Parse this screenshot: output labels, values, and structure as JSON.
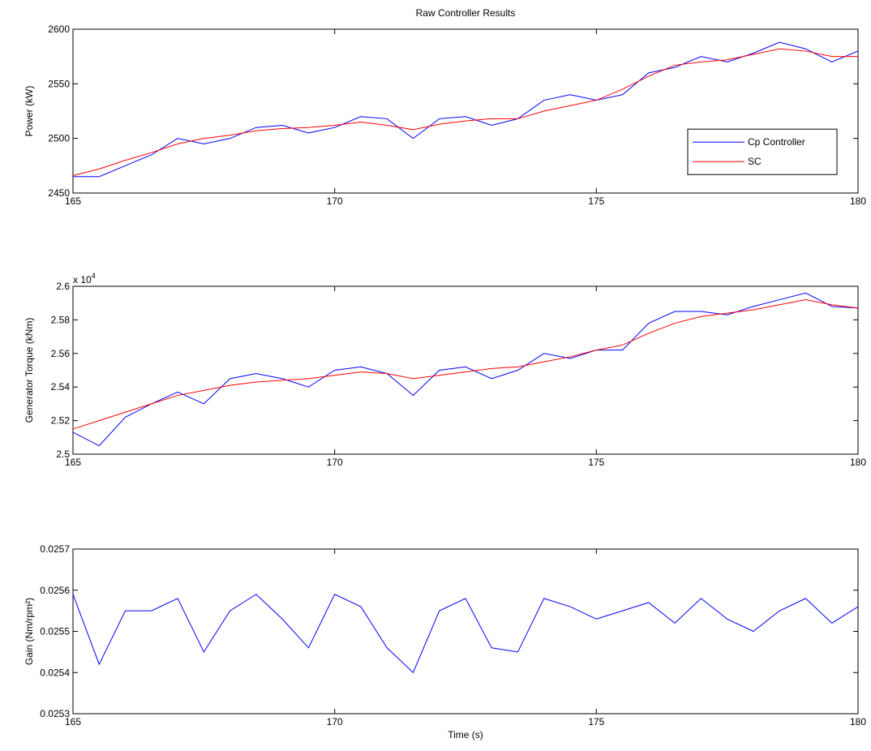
{
  "chart_data": [
    {
      "type": "line",
      "title": "Raw Controller Results",
      "ylabel": "Power (kW)",
      "x": [
        165,
        165.5,
        166,
        166.5,
        167,
        167.5,
        168,
        168.5,
        169,
        169.5,
        170,
        170.5,
        171,
        171.5,
        172,
        172.5,
        173,
        173.5,
        174,
        174.5,
        175,
        175.5,
        176,
        176.5,
        177,
        177.5,
        178,
        178.5,
        179,
        179.5,
        180
      ],
      "series": [
        {
          "name": "Cp Controller",
          "color": "#0000ff",
          "values": [
            2465,
            2465,
            2475,
            2485,
            2500,
            2495,
            2500,
            2510,
            2512,
            2505,
            2510,
            2520,
            2518,
            2500,
            2518,
            2520,
            2512,
            2518,
            2535,
            2540,
            2535,
            2540,
            2560,
            2565,
            2575,
            2570,
            2578,
            2588,
            2582,
            2570,
            2580
          ]
        },
        {
          "name": "SC",
          "color": "#ff0000",
          "values": [
            2466,
            2472,
            2480,
            2487,
            2495,
            2500,
            2503,
            2507,
            2509,
            2510,
            2512,
            2515,
            2512,
            2508,
            2513,
            2516,
            2518,
            2518,
            2525,
            2530,
            2535,
            2545,
            2557,
            2567,
            2570,
            2572,
            2577,
            2582,
            2580,
            2575,
            2575
          ]
        }
      ],
      "xlim": [
        165,
        180
      ],
      "xticks": [
        165,
        170,
        175,
        180
      ],
      "ylim": [
        2450,
        2600
      ],
      "yticks": [
        2450,
        2500,
        2550,
        2600
      ],
      "legend": "right"
    },
    {
      "type": "line",
      "ylabel": "Generator Torque (kNm)",
      "multiplier": {
        "base": "x 10",
        "exponent": "4"
      },
      "x": [
        165,
        165.5,
        166,
        166.5,
        167,
        167.5,
        168,
        168.5,
        169,
        169.5,
        170,
        170.5,
        171,
        171.5,
        172,
        172.5,
        173,
        173.5,
        174,
        174.5,
        175,
        175.5,
        176,
        176.5,
        177,
        177.5,
        178,
        178.5,
        179,
        179.5,
        180
      ],
      "series": [
        {
          "name": "Cp Controller",
          "color": "#0000ff",
          "values": [
            2.513,
            2.505,
            2.522,
            2.53,
            2.537,
            2.53,
            2.545,
            2.548,
            2.545,
            2.54,
            2.55,
            2.552,
            2.548,
            2.535,
            2.55,
            2.552,
            2.545,
            2.55,
            2.56,
            2.557,
            2.562,
            2.562,
            2.578,
            2.585,
            2.585,
            2.583,
            2.588,
            2.592,
            2.596,
            2.588,
            2.587
          ]
        },
        {
          "name": "SC",
          "color": "#ff0000",
          "values": [
            2.515,
            2.52,
            2.525,
            2.53,
            2.535,
            2.538,
            2.541,
            2.543,
            2.544,
            2.545,
            2.547,
            2.549,
            2.548,
            2.545,
            2.547,
            2.549,
            2.551,
            2.552,
            2.555,
            2.558,
            2.562,
            2.565,
            2.572,
            2.578,
            2.582,
            2.584,
            2.586,
            2.589,
            2.592,
            2.589,
            2.587
          ]
        }
      ],
      "xlim": [
        165,
        180
      ],
      "xticks": [
        165,
        170,
        175,
        180
      ],
      "ylim": [
        2.5,
        2.6
      ],
      "yticks": [
        2.5,
        2.52,
        2.54,
        2.56,
        2.58,
        2.6
      ]
    },
    {
      "type": "line",
      "ylabel": "Gain (Nm/rpm²)",
      "xlabel": "Time (s)",
      "x": [
        165,
        165.5,
        166,
        166.5,
        167,
        167.5,
        168,
        168.5,
        169,
        169.5,
        170,
        170.5,
        171,
        171.5,
        172,
        172.5,
        173,
        173.5,
        174,
        174.5,
        175,
        175.5,
        176,
        176.5,
        177,
        177.5,
        178,
        178.5,
        179,
        179.5,
        180
      ],
      "series": [
        {
          "name": "Cp Controller",
          "color": "#0000ff",
          "values": [
            0.02559,
            0.02542,
            0.02555,
            0.02555,
            0.02558,
            0.02545,
            0.02555,
            0.02559,
            0.02553,
            0.02546,
            0.02559,
            0.02556,
            0.02546,
            0.0254,
            0.02555,
            0.02558,
            0.02546,
            0.02545,
            0.02558,
            0.02556,
            0.02553,
            0.02555,
            0.02557,
            0.02552,
            0.02558,
            0.02553,
            0.0255,
            0.02555,
            0.02558,
            0.02552,
            0.02556
          ]
        }
      ],
      "xlim": [
        165,
        180
      ],
      "xticks": [
        165,
        170,
        175,
        180
      ],
      "ylim": [
        0.0253,
        0.0257
      ],
      "yticks": [
        0.0253,
        0.0254,
        0.0255,
        0.0256,
        0.0257
      ]
    }
  ]
}
